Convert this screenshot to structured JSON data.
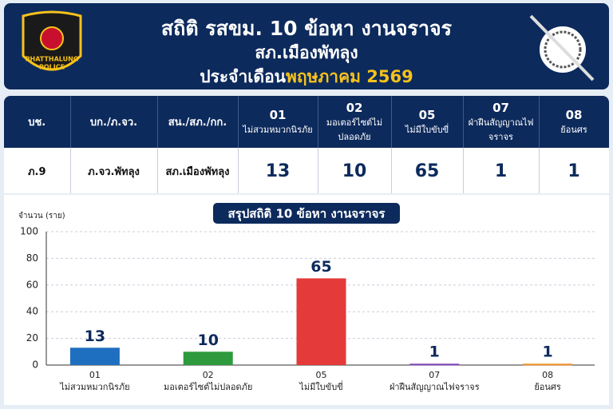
{
  "header": {
    "title": "สถิติ รสขม. 10 ข้อหา งานจราจร",
    "station": "สภ.เมืองพัทลุง",
    "period_prefix": "ประจำเดือน",
    "period": "พฤษภาคม 2569",
    "badge_line1": "PHATTHALUNG",
    "badge_line2": "POLICE"
  },
  "table": {
    "columns": [
      "บช.",
      "บก./ภ.จว.",
      "สน./สภ./กก."
    ],
    "charges": [
      {
        "code": "01",
        "label": "ไม่สวมหมวกนิรภัย"
      },
      {
        "code": "02",
        "label": "มอเตอร์ไซต์ไม่ปลอดภัย"
      },
      {
        "code": "05",
        "label": "ไม่มีใบขับขี่"
      },
      {
        "code": "07",
        "label": "ฝ่าฝืนสัญญาณไฟจราจร"
      },
      {
        "code": "08",
        "label": "ย้อนศร"
      }
    ],
    "row": [
      "ภ.9",
      "ภ.จว.พัทลุง",
      "สภ.เมืองพัทลุง",
      13,
      10,
      65,
      1,
      1
    ]
  },
  "chart_data": {
    "type": "bar",
    "title": "สรุปสถิติ 10 ข้อหา งานจราจร",
    "y_label": "จำนวน (ราย)",
    "categories": [
      "01",
      "02",
      "05",
      "07",
      "08"
    ],
    "category_names": [
      "ไม่สวมหมวกนิรภัย",
      "มอเตอร์ไซต์ไม่ปลอดภัย",
      "ไม่มีใบขับขี่",
      "ฝ่าฝืนสัญญาณไฟจราจร",
      "ย้อนศร"
    ],
    "values": [
      13,
      10,
      65,
      1,
      1
    ],
    "colors": [
      "#1f6fc0",
      "#2e9a3e",
      "#e53a3a",
      "#7b3fb5",
      "#f08c1e"
    ],
    "ylim": [
      0,
      100
    ],
    "yticks": [
      0,
      20,
      40,
      60,
      80,
      100
    ],
    "grid": true
  }
}
